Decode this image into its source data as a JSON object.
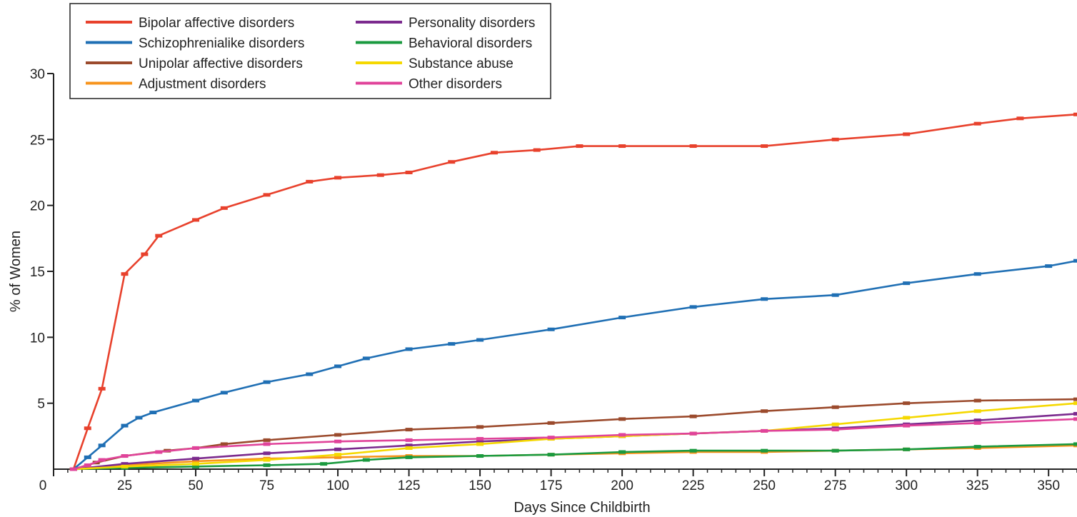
{
  "chart_data": {
    "type": "line",
    "title": "",
    "xlabel": "Days Since Childbirth",
    "ylabel": "% of Women",
    "xlim": [
      0,
      360
    ],
    "ylim": [
      0,
      30
    ],
    "x_ticks": [
      0,
      25,
      50,
      75,
      100,
      125,
      150,
      175,
      200,
      225,
      250,
      275,
      300,
      325,
      350
    ],
    "y_ticks": [
      5,
      10,
      15,
      20,
      25,
      30
    ],
    "legend_position": "top-left",
    "grid": false,
    "series": [
      {
        "name": "Bipolar affective disorders",
        "color": "#e8412c",
        "points": [
          [
            7,
            0
          ],
          [
            12,
            3.1
          ],
          [
            17,
            6.1
          ],
          [
            25,
            14.8
          ],
          [
            32,
            16.3
          ],
          [
            37,
            17.7
          ],
          [
            50,
            18.9
          ],
          [
            60,
            19.8
          ],
          [
            75,
            20.8
          ],
          [
            90,
            21.8
          ],
          [
            100,
            22.1
          ],
          [
            115,
            22.3
          ],
          [
            125,
            22.5
          ],
          [
            140,
            23.3
          ],
          [
            155,
            24.0
          ],
          [
            170,
            24.2
          ],
          [
            185,
            24.5
          ],
          [
            200,
            24.5
          ],
          [
            225,
            24.5
          ],
          [
            250,
            24.5
          ],
          [
            275,
            25.0
          ],
          [
            300,
            25.4
          ],
          [
            325,
            26.2
          ],
          [
            340,
            26.6
          ],
          [
            360,
            26.9
          ]
        ]
      },
      {
        "name": "Schizophrenialike disorders",
        "color": "#1f6fb4",
        "points": [
          [
            7,
            0
          ],
          [
            12,
            0.9
          ],
          [
            17,
            1.8
          ],
          [
            25,
            3.3
          ],
          [
            30,
            3.9
          ],
          [
            35,
            4.3
          ],
          [
            50,
            5.2
          ],
          [
            60,
            5.8
          ],
          [
            75,
            6.6
          ],
          [
            90,
            7.2
          ],
          [
            100,
            7.8
          ],
          [
            110,
            8.4
          ],
          [
            125,
            9.1
          ],
          [
            140,
            9.5
          ],
          [
            150,
            9.8
          ],
          [
            175,
            10.6
          ],
          [
            200,
            11.5
          ],
          [
            225,
            12.3
          ],
          [
            250,
            12.9
          ],
          [
            275,
            13.2
          ],
          [
            300,
            14.1
          ],
          [
            325,
            14.8
          ],
          [
            350,
            15.4
          ],
          [
            360,
            15.8
          ]
        ]
      },
      {
        "name": "Unipolar affective disorders",
        "color": "#9b4a2c",
        "points": [
          [
            7,
            0
          ],
          [
            15,
            0.5
          ],
          [
            25,
            1.0
          ],
          [
            40,
            1.4
          ],
          [
            50,
            1.6
          ],
          [
            60,
            1.9
          ],
          [
            75,
            2.2
          ],
          [
            100,
            2.6
          ],
          [
            125,
            3.0
          ],
          [
            150,
            3.2
          ],
          [
            175,
            3.5
          ],
          [
            200,
            3.8
          ],
          [
            225,
            4.0
          ],
          [
            250,
            4.4
          ],
          [
            275,
            4.7
          ],
          [
            300,
            5.0
          ],
          [
            325,
            5.2
          ],
          [
            360,
            5.3
          ]
        ]
      },
      {
        "name": "Adjustment disorders",
        "color": "#f7941d",
        "points": [
          [
            7,
            0
          ],
          [
            25,
            0.3
          ],
          [
            50,
            0.6
          ],
          [
            75,
            0.8
          ],
          [
            100,
            0.9
          ],
          [
            125,
            1.0
          ],
          [
            150,
            1.0
          ],
          [
            175,
            1.1
          ],
          [
            200,
            1.2
          ],
          [
            225,
            1.3
          ],
          [
            250,
            1.3
          ],
          [
            275,
            1.4
          ],
          [
            300,
            1.5
          ],
          [
            325,
            1.6
          ],
          [
            360,
            1.8
          ]
        ]
      },
      {
        "name": "Personality disorders",
        "color": "#7b2a8e",
        "points": [
          [
            7,
            0
          ],
          [
            25,
            0.4
          ],
          [
            50,
            0.8
          ],
          [
            75,
            1.2
          ],
          [
            100,
            1.5
          ],
          [
            125,
            1.8
          ],
          [
            150,
            2.1
          ],
          [
            175,
            2.3
          ],
          [
            200,
            2.5
          ],
          [
            225,
            2.7
          ],
          [
            250,
            2.9
          ],
          [
            275,
            3.1
          ],
          [
            300,
            3.4
          ],
          [
            325,
            3.7
          ],
          [
            360,
            4.2
          ]
        ]
      },
      {
        "name": "Behavioral disorders",
        "color": "#1a9a3f",
        "points": [
          [
            7,
            0
          ],
          [
            25,
            0.1
          ],
          [
            50,
            0.2
          ],
          [
            75,
            0.3
          ],
          [
            95,
            0.4
          ],
          [
            110,
            0.7
          ],
          [
            125,
            0.9
          ],
          [
            150,
            1.0
          ],
          [
            175,
            1.1
          ],
          [
            200,
            1.3
          ],
          [
            225,
            1.4
          ],
          [
            250,
            1.4
          ],
          [
            275,
            1.4
          ],
          [
            300,
            1.5
          ],
          [
            325,
            1.7
          ],
          [
            360,
            1.9
          ]
        ]
      },
      {
        "name": "Substance abuse",
        "color": "#f5d800",
        "points": [
          [
            7,
            0
          ],
          [
            25,
            0.2
          ],
          [
            50,
            0.4
          ],
          [
            75,
            0.7
          ],
          [
            100,
            1.1
          ],
          [
            125,
            1.6
          ],
          [
            150,
            1.9
          ],
          [
            175,
            2.3
          ],
          [
            200,
            2.5
          ],
          [
            225,
            2.7
          ],
          [
            250,
            2.9
          ],
          [
            275,
            3.4
          ],
          [
            300,
            3.9
          ],
          [
            325,
            4.4
          ],
          [
            360,
            5.0
          ]
        ]
      },
      {
        "name": "Other disorders",
        "color": "#e0439a",
        "points": [
          [
            7,
            0
          ],
          [
            12,
            0.3
          ],
          [
            17,
            0.7
          ],
          [
            25,
            1.0
          ],
          [
            37,
            1.3
          ],
          [
            50,
            1.6
          ],
          [
            75,
            1.9
          ],
          [
            100,
            2.1
          ],
          [
            125,
            2.2
          ],
          [
            150,
            2.3
          ],
          [
            175,
            2.4
          ],
          [
            200,
            2.6
          ],
          [
            225,
            2.7
          ],
          [
            250,
            2.9
          ],
          [
            275,
            3.0
          ],
          [
            300,
            3.3
          ],
          [
            325,
            3.5
          ],
          [
            360,
            3.8
          ]
        ]
      }
    ]
  }
}
